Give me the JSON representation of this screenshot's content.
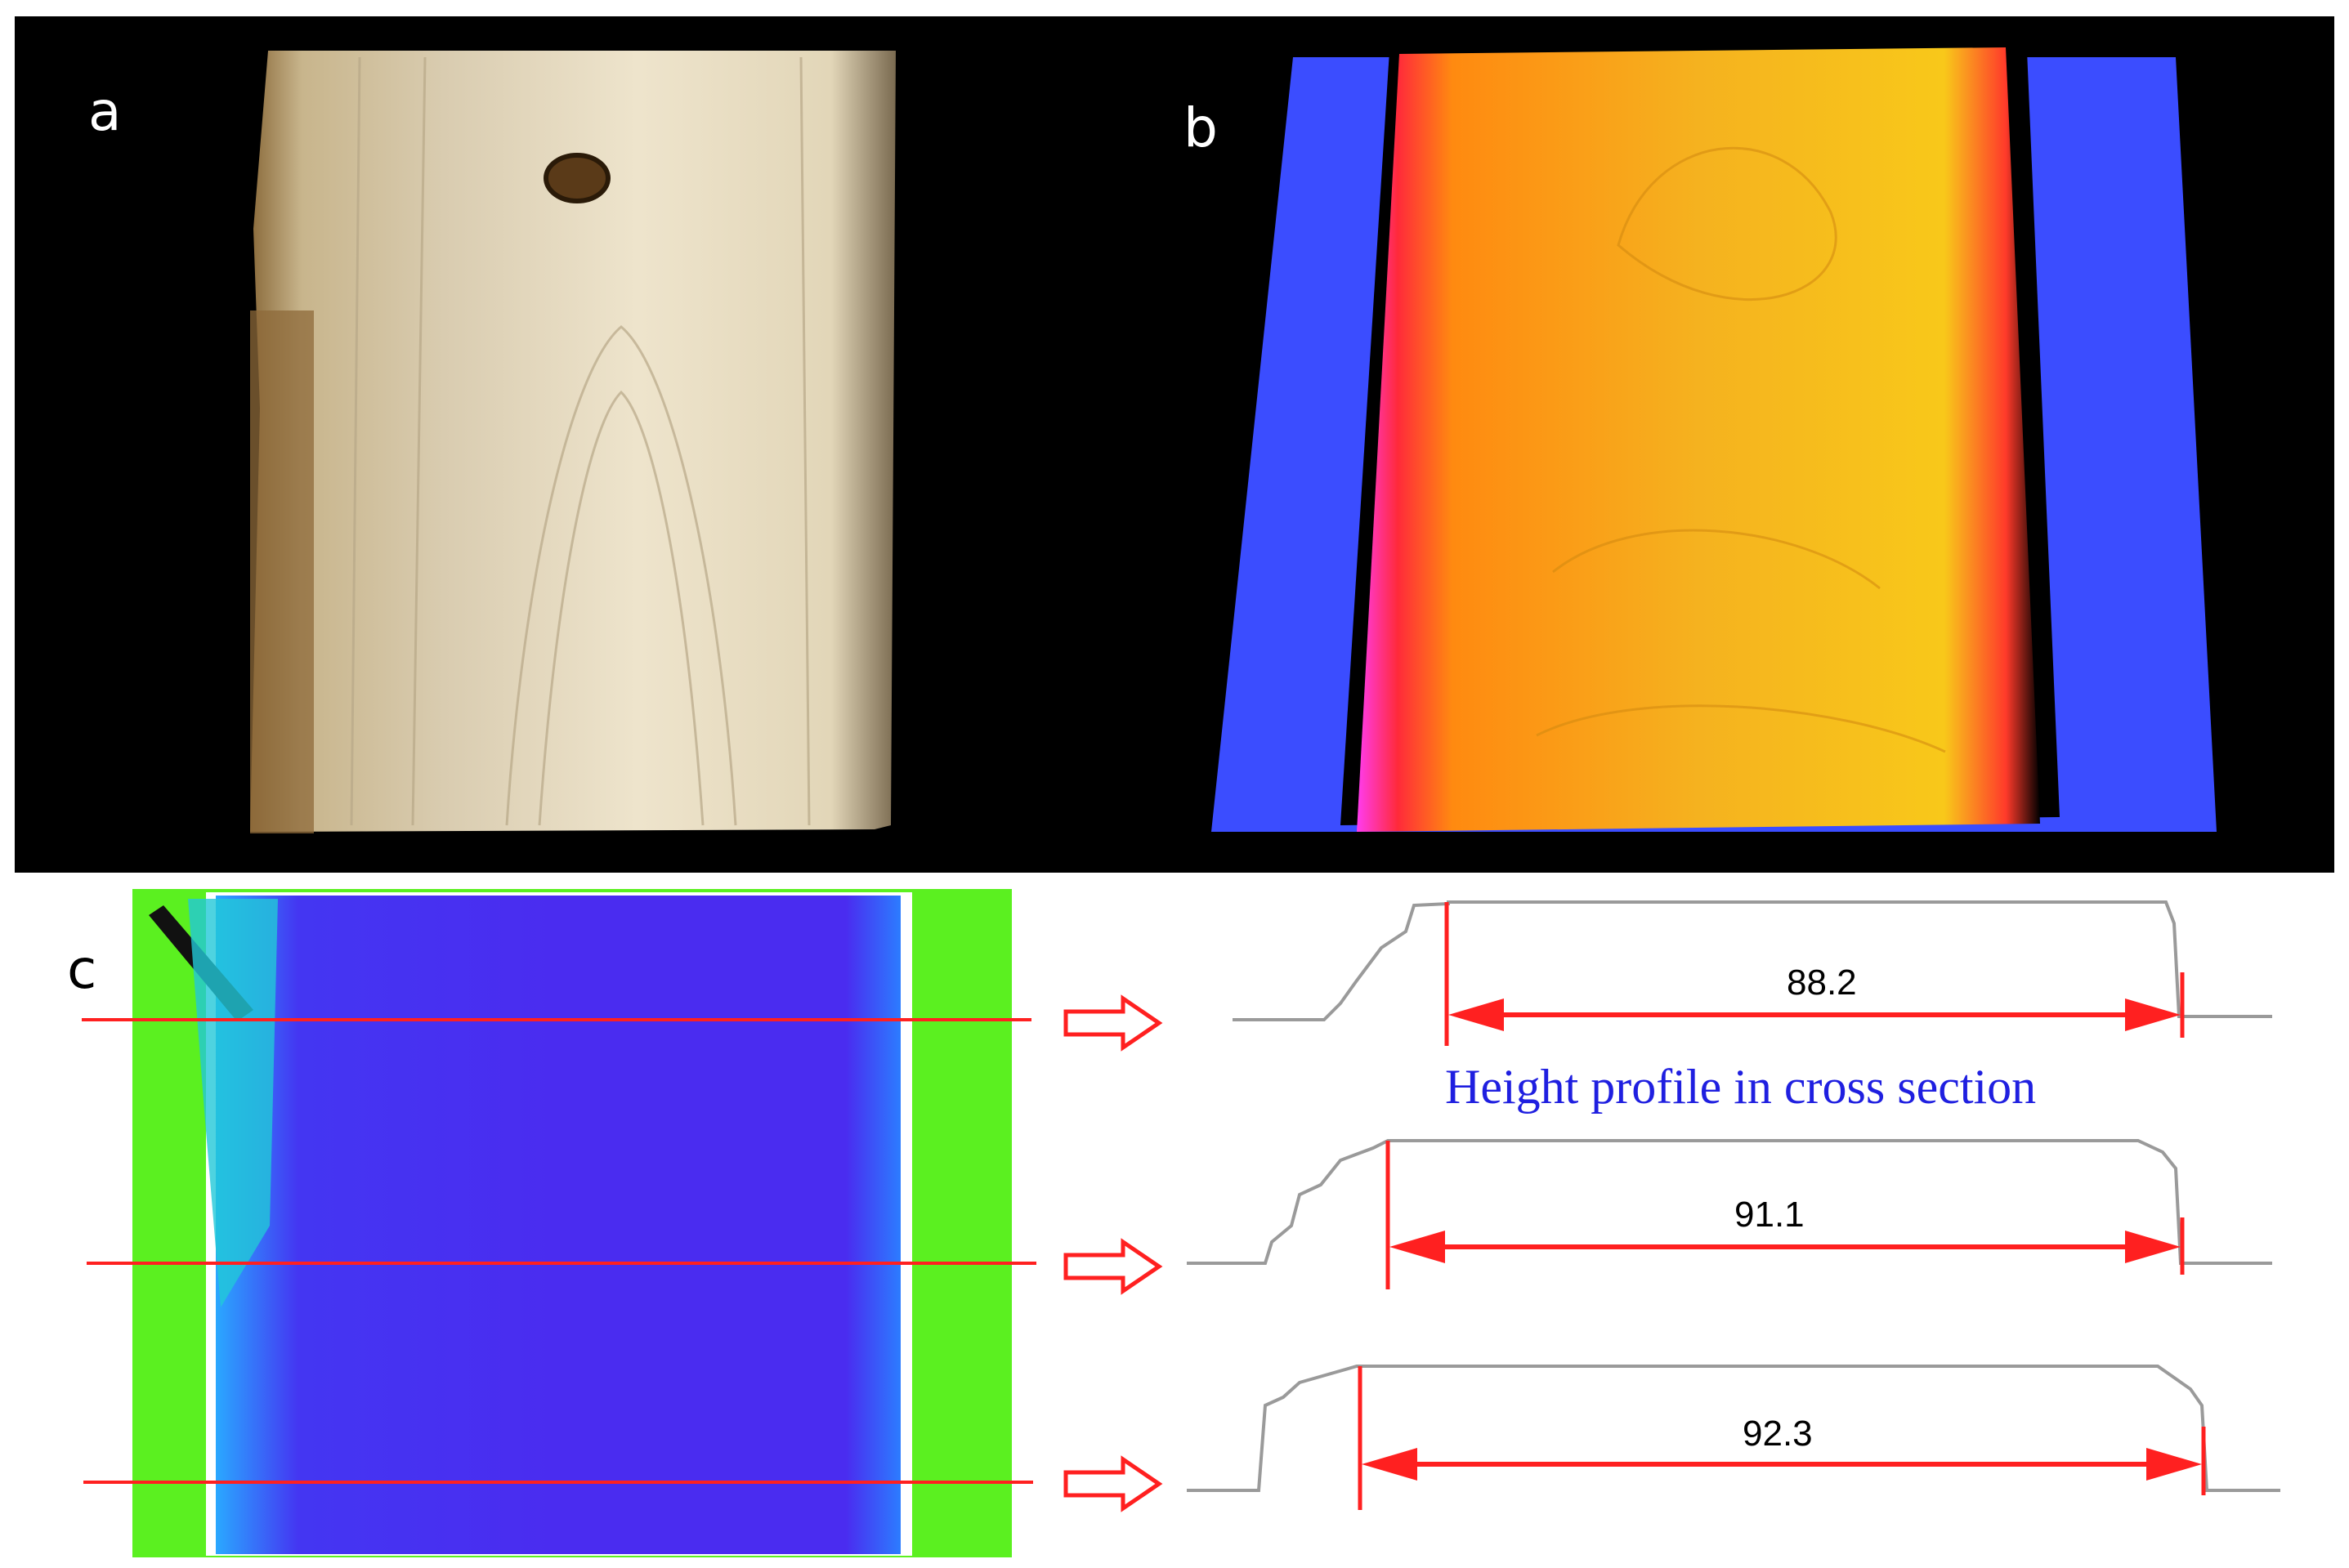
{
  "panels": {
    "a": {
      "label": "a"
    },
    "b": {
      "label": "b"
    },
    "c": {
      "label": "c"
    }
  },
  "profiles": {
    "caption": "Height profile in cross section",
    "widths": [
      "88.2",
      "91.1",
      "92.3"
    ]
  },
  "colors": {
    "background": "#000000",
    "wood": "#e6dcc2",
    "depth_high": "#f5b21f",
    "depth_edge": "#ff2a3a",
    "depth_base": "#3b4dff",
    "topview_board": "#4422f0",
    "topview_ground": "#55ee22",
    "section_line": "#ff2020",
    "profile_line": "#9a9a9a",
    "caption": "#1f1fe0"
  }
}
